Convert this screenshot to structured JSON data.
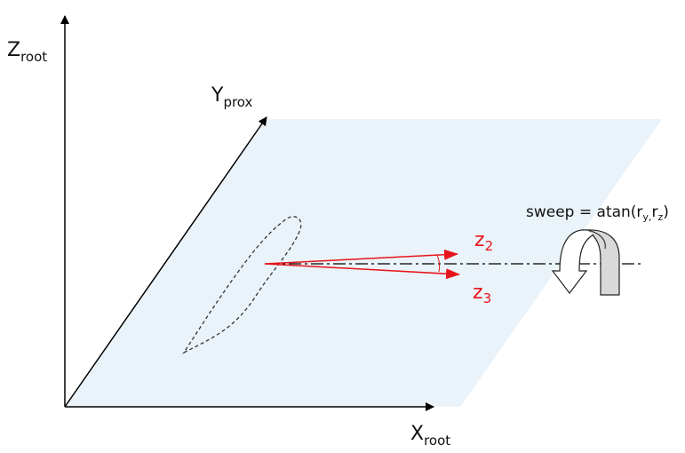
{
  "labels": {
    "z_axis": {
      "main": "Z",
      "sub": "root"
    },
    "y_axis": {
      "main": "Y",
      "sub": "prox"
    },
    "x_axis": {
      "main": "X",
      "sub": "root"
    },
    "z2": {
      "main": "z",
      "sub": "2"
    },
    "z3": {
      "main": "z",
      "sub": "3"
    },
    "sweep": {
      "prefix": "sweep = atan(r",
      "sub1": "y,",
      "mid": "r",
      "sub2": "z",
      "suffix": ")"
    }
  },
  "colors": {
    "plane": "#eaf3f9",
    "vectors": "#e8141b",
    "axes": "#000000",
    "arrow_shade": "#d9d9d9"
  }
}
